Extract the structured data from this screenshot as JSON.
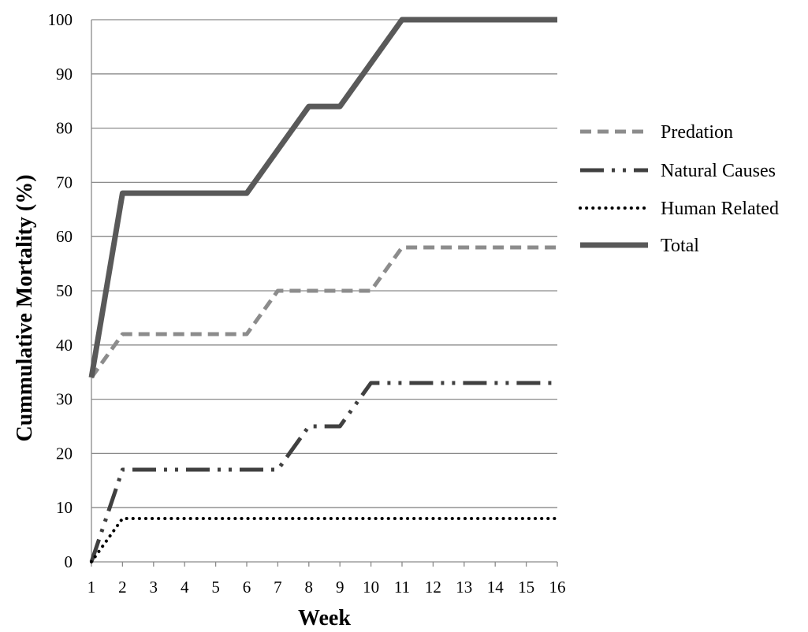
{
  "chart_data": {
    "type": "line",
    "title": "",
    "xlabel": "Week",
    "ylabel": "Cummulative Mortality (%)",
    "x": [
      1,
      2,
      3,
      4,
      5,
      6,
      7,
      8,
      9,
      10,
      11,
      12,
      13,
      14,
      15,
      16
    ],
    "xticks": [
      "1",
      "2",
      "3",
      "4",
      "5",
      "6",
      "7",
      "8",
      "9",
      "10",
      "11",
      "12",
      "13",
      "14",
      "15",
      "16"
    ],
    "yticks": [
      "0",
      "10",
      "20",
      "30",
      "40",
      "50",
      "60",
      "70",
      "80",
      "90",
      "100"
    ],
    "ylim": [
      0,
      100
    ],
    "grid": "horizontal",
    "legend_position": "right",
    "series": [
      {
        "name": "Predation",
        "style": "dashed",
        "color": "#8c8c8c",
        "values": [
          34,
          42,
          42,
          42,
          42,
          42,
          50,
          50,
          50,
          50,
          58,
          58,
          58,
          58,
          58,
          58
        ]
      },
      {
        "name": "Natural Causes",
        "style": "long-dash-dot-dot",
        "color": "#404040",
        "values": [
          0,
          17,
          17,
          17,
          17,
          17,
          17,
          25,
          25,
          33,
          33,
          33,
          33,
          33,
          33,
          33
        ]
      },
      {
        "name": "Human Related",
        "style": "dotted",
        "color": "#000000",
        "values": [
          0,
          8,
          8,
          8,
          8,
          8,
          8,
          8,
          8,
          8,
          8,
          8,
          8,
          8,
          8,
          8
        ]
      },
      {
        "name": "Total",
        "style": "solid",
        "color": "#595959",
        "values": [
          34,
          68,
          68,
          68,
          68,
          68,
          76,
          84,
          84,
          92,
          100,
          100,
          100,
          100,
          100,
          100
        ]
      }
    ]
  }
}
